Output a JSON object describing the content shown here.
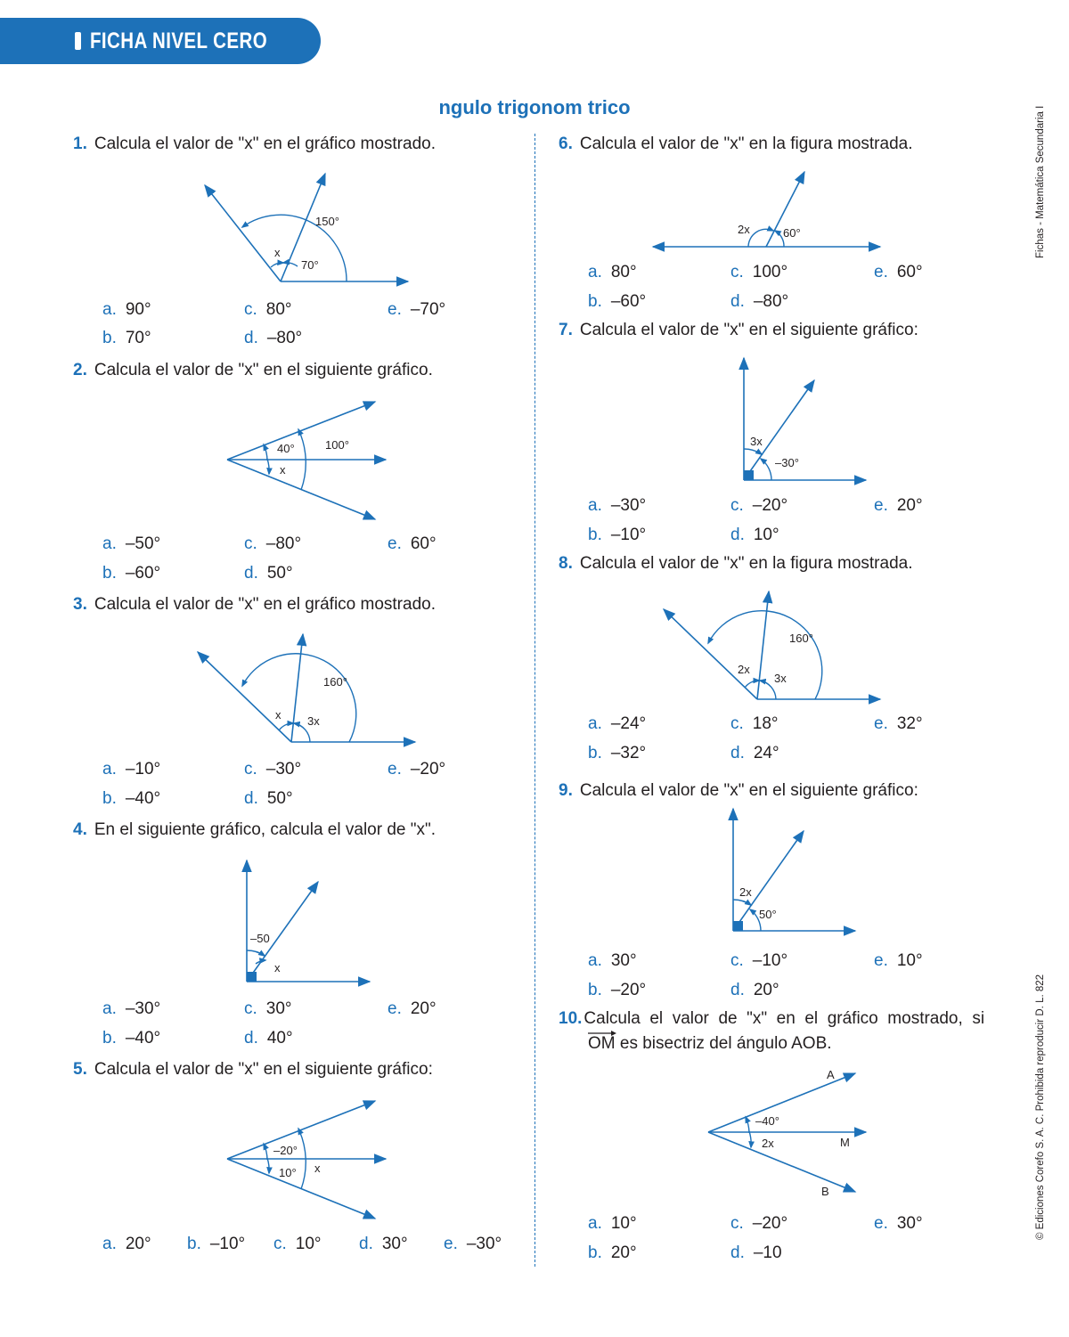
{
  "header": {
    "tab_label": "FICHA NIVEL CERO"
  },
  "title": "ngulo trigonom   trico",
  "side": {
    "top": "Fichas - Matemática Secundaria I",
    "bottom": "© Ediciones Corefo S. A. C. Prohibida reproducir D. L. 822"
  },
  "colors": {
    "accent": "#1d71b8",
    "text": "#231f20"
  },
  "questions": [
    {
      "num": "1.",
      "bold": "Calcula",
      "text": " el valor de \"x\" en el gráfico mostrado.",
      "labels": [
        "150°",
        "x",
        "70°"
      ],
      "options": [
        {
          "l": "a.",
          "v": "90°"
        },
        {
          "l": "b.",
          "v": "70°"
        },
        {
          "l": "c.",
          "v": "80°"
        },
        {
          "l": "d.",
          "v": "–80°"
        },
        {
          "l": "e.",
          "v": "–70°"
        }
      ]
    },
    {
      "num": "2.",
      "bold": "Calcula",
      "text": " el valor de \"x\" en el siguiente gráfico.",
      "labels": [
        "40°",
        "100°",
        "x"
      ],
      "options": [
        {
          "l": "a.",
          "v": "–50°"
        },
        {
          "l": "b.",
          "v": "–60°"
        },
        {
          "l": "c.",
          "v": "–80°"
        },
        {
          "l": "d.",
          "v": "50°"
        },
        {
          "l": "e.",
          "v": "60°"
        }
      ]
    },
    {
      "num": "3.",
      "bold": "Calcula",
      "text": " el valor de \"x\" en el gráfico mostrado.",
      "labels": [
        "160°",
        "x",
        "3x"
      ],
      "options": [
        {
          "l": "a.",
          "v": "–10°"
        },
        {
          "l": "b.",
          "v": "–40°"
        },
        {
          "l": "c.",
          "v": "–30°"
        },
        {
          "l": "d.",
          "v": "50°"
        },
        {
          "l": "e.",
          "v": "–20°"
        }
      ]
    },
    {
      "num": "4.",
      "pre": "En el siguiente gráfico, ",
      "bold": "calcula",
      "text": " el valor de \"x\".",
      "labels": [
        "–50",
        "x"
      ],
      "options": [
        {
          "l": "a.",
          "v": "–30°"
        },
        {
          "l": "b.",
          "v": "–40°"
        },
        {
          "l": "c.",
          "v": "30°"
        },
        {
          "l": "d.",
          "v": "40°"
        },
        {
          "l": "e.",
          "v": "20°"
        }
      ]
    },
    {
      "num": "5.",
      "bold": "Calcula",
      "text": " el valor de \"x\" en el siguiente gráfico:",
      "labels": [
        "–20°",
        "10°",
        "x"
      ],
      "options": [
        {
          "l": "a.",
          "v": "20°"
        },
        {
          "l": "b.",
          "v": "–10°"
        },
        {
          "l": "c.",
          "v": "10°"
        },
        {
          "l": "d.",
          "v": "30°"
        },
        {
          "l": "e.",
          "v": "–30°"
        }
      ]
    },
    {
      "num": "6.",
      "bold": "Calcula",
      "text": " el valor de \"x\" en la figura mostrada.",
      "labels": [
        "2x",
        "60°"
      ],
      "options": [
        {
          "l": "a.",
          "v": "80°"
        },
        {
          "l": "b.",
          "v": "–60°"
        },
        {
          "l": "c.",
          "v": "100°"
        },
        {
          "l": "d.",
          "v": "–80°"
        },
        {
          "l": "e.",
          "v": "60°"
        }
      ]
    },
    {
      "num": "7.",
      "bold": "Calcula",
      "text": " el valor de \"x\" en el siguiente gráfico:",
      "labels": [
        "3x",
        "–30°"
      ],
      "options": [
        {
          "l": "a.",
          "v": "–30°"
        },
        {
          "l": "b.",
          "v": "–10°"
        },
        {
          "l": "c.",
          "v": "–20°"
        },
        {
          "l": "d.",
          "v": "10°"
        },
        {
          "l": "e.",
          "v": "20°"
        }
      ]
    },
    {
      "num": "8.",
      "bold": "Calcula",
      "text": " el valor de \"x\" en la figura mostrada.",
      "labels": [
        "160°",
        "2x",
        "3x"
      ],
      "options": [
        {
          "l": "a.",
          "v": "–24°"
        },
        {
          "l": "b.",
          "v": "–32°"
        },
        {
          "l": "c.",
          "v": "18°"
        },
        {
          "l": "d.",
          "v": "24°"
        },
        {
          "l": "e.",
          "v": "32°"
        }
      ]
    },
    {
      "num": "9.",
      "bold": "Calcula",
      "text": " el valor de \"x\" en el siguiente gráfico:",
      "labels": [
        "2x",
        "50°"
      ],
      "options": [
        {
          "l": "a.",
          "v": "30°"
        },
        {
          "l": "b.",
          "v": "–20°"
        },
        {
          "l": "c.",
          "v": "–10°"
        },
        {
          "l": "d.",
          "v": "20°"
        },
        {
          "l": "e.",
          "v": "10°"
        }
      ]
    },
    {
      "num": "10.",
      "bold": "Calcula",
      "text": "  el  valor  de  \"x\"  en  el  gráfico  mostrado,  si",
      "line2": "OM es bisectriz del ángulo AOB.",
      "labels": [
        "A",
        "–40°",
        "2x",
        "M",
        "B"
      ],
      "options": [
        {
          "l": "a.",
          "v": "10°"
        },
        {
          "l": "b.",
          "v": "20°"
        },
        {
          "l": "c.",
          "v": "–20°"
        },
        {
          "l": "d.",
          "v": "–10"
        },
        {
          "l": "e.",
          "v": "30°"
        }
      ]
    }
  ]
}
